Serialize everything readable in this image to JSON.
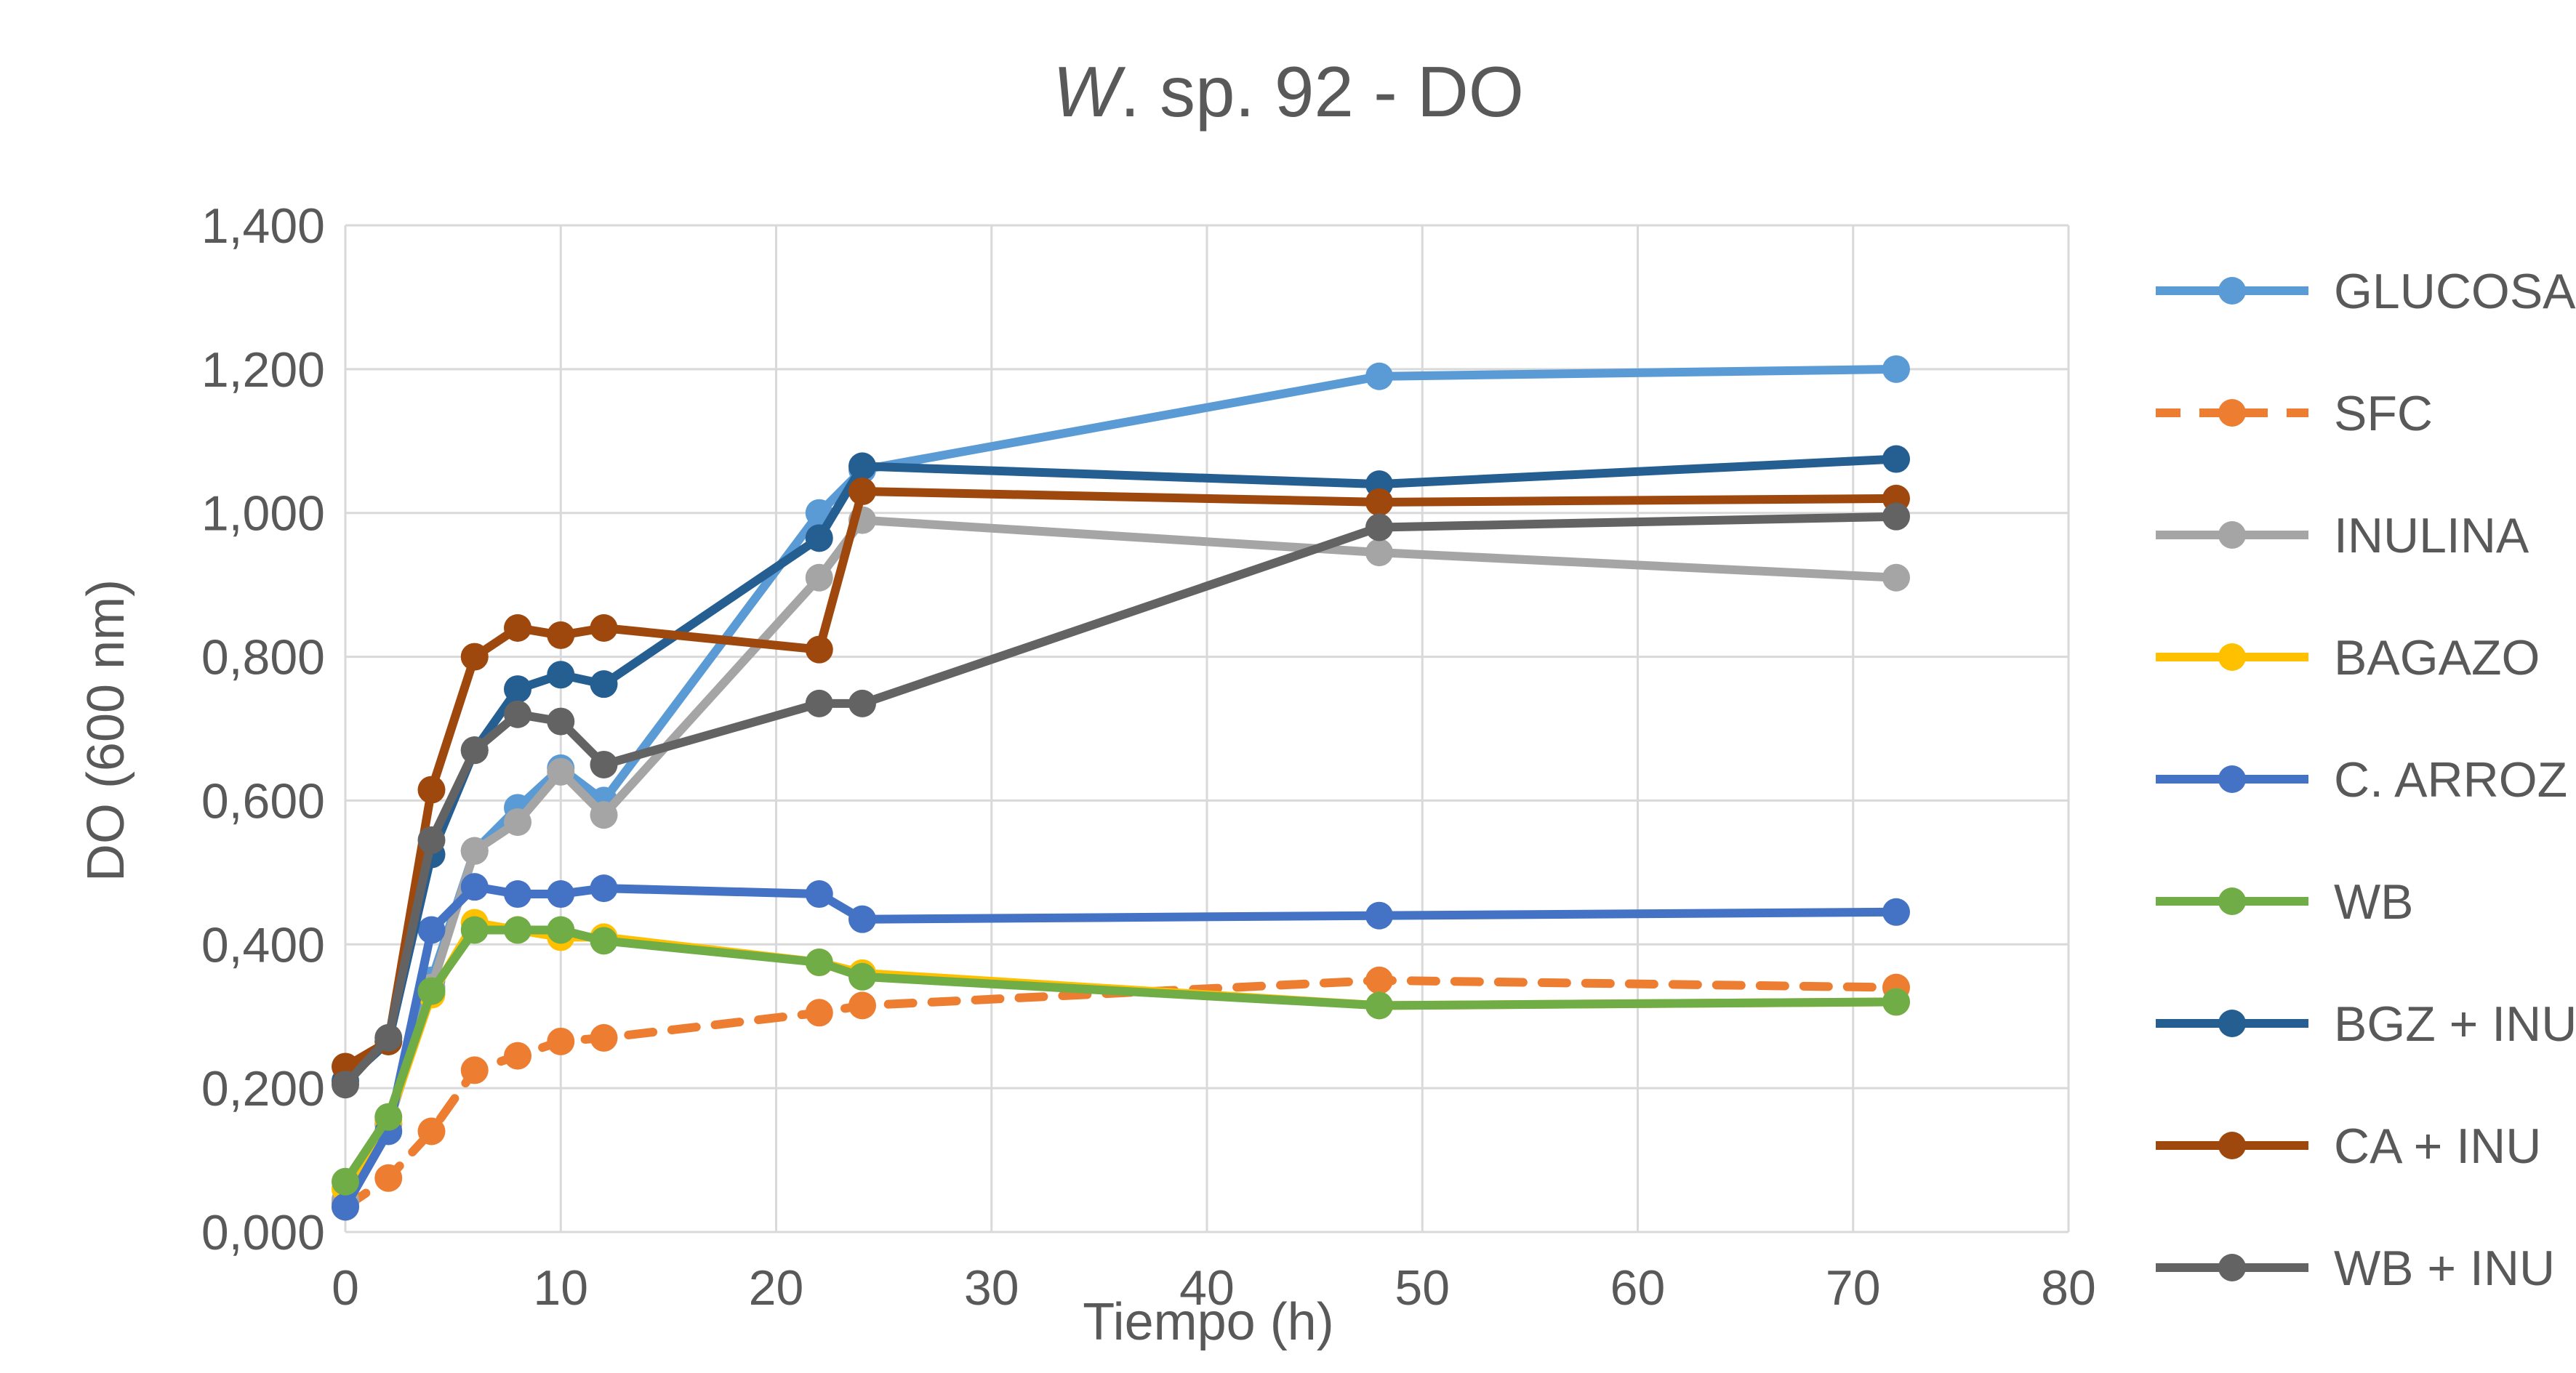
{
  "chart_data": {
    "type": "line",
    "title_italic": "W",
    "title_rest": ". sp. 92 - DO",
    "xlabel": "Tiempo (h)",
    "ylabel": "DO (600 nm)",
    "xlim": [
      0,
      80
    ],
    "ylim": [
      0,
      1.4
    ],
    "x_ticks": [
      0,
      10,
      20,
      30,
      40,
      50,
      60,
      70,
      80
    ],
    "x_tick_labels": [
      "0",
      "10",
      "20",
      "30",
      "40",
      "50",
      "60",
      "70",
      "80"
    ],
    "y_ticks": [
      0,
      0.2,
      0.4,
      0.6,
      0.8,
      1.0,
      1.2,
      1.4
    ],
    "y_tick_labels": [
      "0,000",
      "0,200",
      "0,400",
      "0,600",
      "0,800",
      "1,000",
      "1,200",
      "1,400"
    ],
    "grid": true,
    "legend_position": "right",
    "series": [
      {
        "name": "GLUCOSA",
        "color": "#5B9BD5",
        "dashed": false,
        "x": [
          0,
          2,
          4,
          6,
          8,
          10,
          12,
          22,
          24,
          48,
          72
        ],
        "y": [
          0.04,
          0.15,
          0.35,
          0.53,
          0.59,
          0.645,
          0.6,
          1.0,
          1.06,
          1.19,
          1.2
        ]
      },
      {
        "name": "SFC",
        "color": "#ED7D31",
        "dashed": true,
        "x": [
          0,
          2,
          4,
          6,
          8,
          10,
          12,
          22,
          24,
          48,
          72
        ],
        "y": [
          0.035,
          0.075,
          0.14,
          0.225,
          0.245,
          0.265,
          0.27,
          0.305,
          0.315,
          0.35,
          0.34
        ]
      },
      {
        "name": "INULINA",
        "color": "#A5A5A5",
        "dashed": false,
        "x": [
          0,
          2,
          4,
          6,
          8,
          10,
          12,
          22,
          24,
          48,
          72
        ],
        "y": [
          0.045,
          0.15,
          0.34,
          0.53,
          0.57,
          0.64,
          0.58,
          0.91,
          0.99,
          0.945,
          0.91
        ]
      },
      {
        "name": "BAGAZO",
        "color": "#FFC000",
        "dashed": false,
        "x": [
          0,
          2,
          4,
          6,
          8,
          10,
          12,
          22,
          24,
          48,
          72
        ],
        "y": [
          0.06,
          0.155,
          0.33,
          0.43,
          0.42,
          0.41,
          0.41,
          0.375,
          0.36,
          0.315,
          0.32
        ]
      },
      {
        "name": "C. ARROZ",
        "color": "#4472C4",
        "dashed": false,
        "x": [
          0,
          2,
          4,
          6,
          8,
          10,
          12,
          22,
          24,
          48,
          72
        ],
        "y": [
          0.035,
          0.14,
          0.42,
          0.48,
          0.47,
          0.47,
          0.478,
          0.47,
          0.435,
          0.44,
          0.445
        ]
      },
      {
        "name": "WB",
        "color": "#70AD47",
        "dashed": false,
        "x": [
          0,
          2,
          4,
          6,
          8,
          10,
          12,
          22,
          24,
          48,
          72
        ],
        "y": [
          0.07,
          0.16,
          0.335,
          0.42,
          0.42,
          0.42,
          0.405,
          0.375,
          0.355,
          0.315,
          0.32
        ]
      },
      {
        "name": "BGZ + INU",
        "color": "#255E91",
        "dashed": false,
        "x": [
          0,
          2,
          4,
          6,
          8,
          10,
          12,
          22,
          24,
          48,
          72
        ],
        "y": [
          0.21,
          0.265,
          0.525,
          0.67,
          0.755,
          0.775,
          0.762,
          0.965,
          1.065,
          1.04,
          1.075
        ]
      },
      {
        "name": "CA + INU",
        "color": "#9E480E",
        "dashed": false,
        "x": [
          0,
          2,
          4,
          6,
          8,
          10,
          12,
          22,
          24,
          48,
          72
        ],
        "y": [
          0.23,
          0.265,
          0.615,
          0.8,
          0.84,
          0.83,
          0.84,
          0.81,
          1.03,
          1.015,
          1.02
        ]
      },
      {
        "name": "WB + INU",
        "color": "#636363",
        "dashed": false,
        "x": [
          0,
          2,
          4,
          6,
          8,
          10,
          12,
          22,
          24,
          48,
          72
        ],
        "y": [
          0.205,
          0.27,
          0.545,
          0.67,
          0.72,
          0.71,
          0.65,
          0.735,
          0.735,
          0.98,
          0.995
        ]
      }
    ]
  }
}
